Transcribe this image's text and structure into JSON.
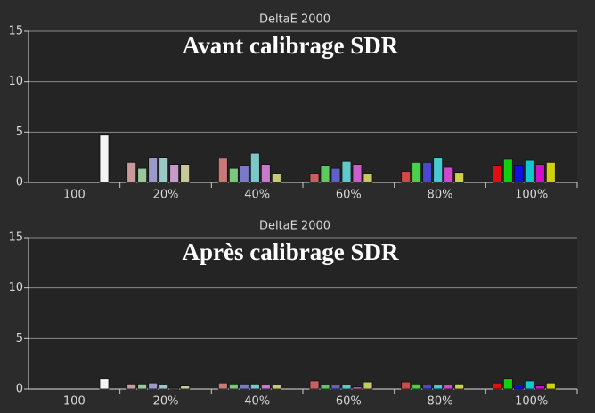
{
  "chart_data": [
    {
      "type": "bar",
      "title": "DeltaE 2000",
      "annotation": "Avant calibrage SDR",
      "categories": [
        "100",
        "20%",
        "40%",
        "60%",
        "80%",
        "100%"
      ],
      "ylim": [
        0,
        15
      ],
      "yticks": [
        0,
        5,
        10,
        15
      ],
      "grid": true,
      "series": [
        {
          "values": [
            null,
            2.0,
            2.4,
            0.9,
            1.1,
            1.7
          ],
          "colors": [
            null,
            "#c89a9a",
            "#c87a7a",
            "#c86060",
            "#d04848",
            "#e01010"
          ]
        },
        {
          "values": [
            null,
            1.4,
            1.4,
            1.7,
            2.0,
            2.3
          ],
          "colors": [
            null,
            "#9ac89a",
            "#7ac87a",
            "#60c860",
            "#48d048",
            "#10d010"
          ]
        },
        {
          "values": [
            null,
            2.5,
            1.7,
            1.4,
            2.0,
            1.7
          ],
          "colors": [
            null,
            "#9a9ac8",
            "#7a7ac8",
            "#6060c8",
            "#4848d0",
            "#1010e0"
          ]
        },
        {
          "values": [
            null,
            2.5,
            2.9,
            2.1,
            2.5,
            2.2
          ],
          "colors": [
            null,
            "#9ac8c8",
            "#7ac8c8",
            "#60c8c8",
            "#48c8d0",
            "#10c8d0"
          ]
        },
        {
          "values": [
            null,
            1.8,
            1.8,
            1.8,
            1.5,
            1.8
          ],
          "colors": [
            null,
            "#c89ac8",
            "#c87ac8",
            "#c860c8",
            "#d048d0",
            "#d010d0"
          ]
        },
        {
          "values": [
            null,
            1.8,
            0.9,
            0.9,
            1.0,
            2.0
          ],
          "colors": [
            null,
            "#c8c89a",
            "#c8c87a",
            "#c8c860",
            "#d0d048",
            "#d0d010"
          ]
        },
        {
          "values": [
            4.7,
            null,
            null,
            null,
            null,
            null
          ],
          "colors": [
            "#f4f4f4",
            null,
            null,
            null,
            null,
            null
          ]
        }
      ]
    },
    {
      "type": "bar",
      "title": "DeltaE 2000",
      "annotation": "Après calibrage SDR",
      "categories": [
        "100",
        "20%",
        "40%",
        "60%",
        "80%",
        "100%"
      ],
      "ylim": [
        0,
        15
      ],
      "yticks": [
        0,
        5,
        10,
        15
      ],
      "grid": true,
      "series": [
        {
          "values": [
            null,
            0.5,
            0.6,
            0.8,
            0.7,
            0.6
          ],
          "colors": [
            null,
            "#c89a9a",
            "#c87a7a",
            "#c86060",
            "#d04848",
            "#e01010"
          ]
        },
        {
          "values": [
            null,
            0.5,
            0.5,
            0.4,
            0.5,
            1.0
          ],
          "colors": [
            null,
            "#9ac89a",
            "#7ac87a",
            "#60c860",
            "#48d048",
            "#10d010"
          ]
        },
        {
          "values": [
            null,
            0.6,
            0.5,
            0.4,
            0.4,
            0.4
          ],
          "colors": [
            null,
            "#9a9ac8",
            "#7a7ac8",
            "#6060c8",
            "#4848d0",
            "#1010e0"
          ]
        },
        {
          "values": [
            null,
            0.4,
            0.5,
            0.4,
            0.4,
            0.8
          ],
          "colors": [
            null,
            "#9ac8c8",
            "#7ac8c8",
            "#60c8c8",
            "#48c8d0",
            "#10c8d0"
          ]
        },
        {
          "values": [
            null,
            0.1,
            0.4,
            0.2,
            0.4,
            0.3
          ],
          "colors": [
            null,
            "#c89ac8",
            "#c87ac8",
            "#c860c8",
            "#d048d0",
            "#d010d0"
          ]
        },
        {
          "values": [
            null,
            0.3,
            0.4,
            0.7,
            0.5,
            0.6
          ],
          "colors": [
            null,
            "#c8c89a",
            "#c8c87a",
            "#c8c860",
            "#d0d048",
            "#d0d010"
          ]
        },
        {
          "values": [
            1.0,
            null,
            null,
            null,
            null,
            null
          ],
          "colors": [
            "#f4f4f4",
            null,
            null,
            null,
            null,
            null
          ]
        }
      ]
    }
  ]
}
